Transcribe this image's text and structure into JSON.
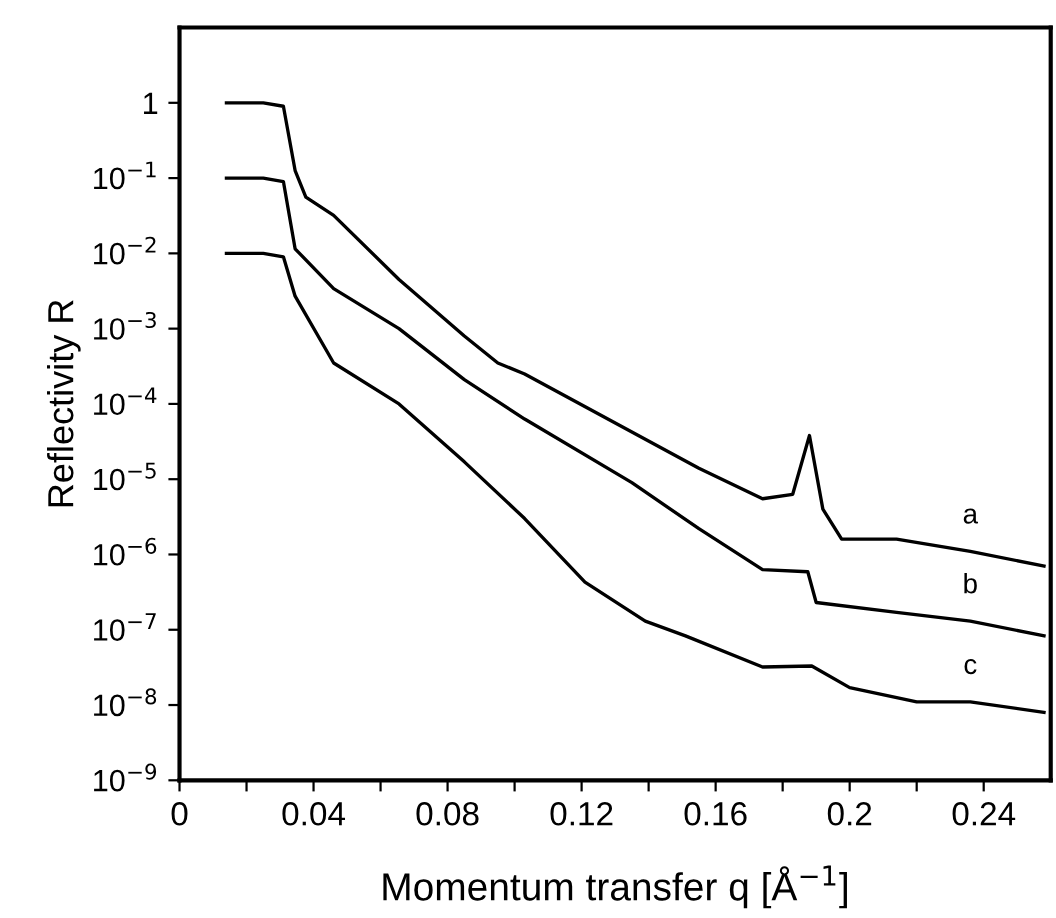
{
  "chart_data": {
    "type": "line",
    "xlabel": "Momentum transfer q [Å$^{−1}$]",
    "ylabel": "Reflectivity R",
    "log": "y",
    "grid": false,
    "legend": false,
    "marker": "none",
    "line_style": "solid",
    "xlim": [
      0,
      0.26
    ],
    "ylim": [
      1e-09,
      10
    ],
    "xticks": [
      0,
      {
        "value": 0.02,
        "label": null
      },
      0.04,
      {
        "value": 0.06,
        "label": null
      },
      0.08,
      {
        "value": 0.1,
        "label": null
      },
      0.12,
      {
        "value": 0.14,
        "label": null
      },
      0.16,
      {
        "value": 0.18,
        "label": null
      },
      0.2,
      {
        "value": 0.22,
        "label": null
      },
      0.24
    ],
    "yticks": [
      {
        "value": 1,
        "label": "1"
      },
      {
        "value": 0.1,
        "label": "10$^{−1}$"
      },
      {
        "value": 0.01,
        "label": "10$^{−2}$"
      },
      {
        "value": 0.001,
        "label": "10$^{−3}$"
      },
      {
        "value": 0.0001,
        "label": "10$^{−4}$"
      },
      {
        "value": 1e-05,
        "label": "10$^{−5}$"
      },
      {
        "value": 1e-06,
        "label": "10$^{−6}$"
      },
      {
        "value": 1e-07,
        "label": "10$^{−7}$"
      },
      {
        "value": 1e-08,
        "label": "10$^{−8}$"
      },
      {
        "value": 1e-09,
        "label": "10$^{−9}$"
      }
    ],
    "series": [
      {
        "name": "a",
        "color": "#000000",
        "x": [
          0.014,
          0.025,
          0.031,
          0.0345,
          0.0377,
          0.046,
          0.0655,
          0.085,
          0.095,
          0.103,
          0.155,
          0.174,
          0.183,
          0.188,
          0.192,
          0.1976,
          0.214,
          0.236,
          0.258
        ],
        "values": [
          1.0,
          1.0,
          0.9,
          0.126,
          0.056,
          0.032,
          0.0045,
          0.0008,
          0.00035,
          0.00025,
          1.4e-05,
          5.5e-06,
          6.3e-06,
          3.8e-05,
          4e-06,
          1.6e-06,
          1.6e-06,
          1.1e-06,
          7e-07
        ]
      },
      {
        "name": "b",
        "color": "#000000",
        "x": [
          0.014,
          0.025,
          0.031,
          0.0345,
          0.046,
          0.0655,
          0.085,
          0.103,
          0.135,
          0.155,
          0.174,
          0.1875,
          0.19,
          0.214,
          0.236,
          0.258
        ],
        "values": [
          0.1,
          0.1,
          0.09,
          0.0115,
          0.0034,
          0.001,
          0.00021,
          6.3e-05,
          9e-06,
          2.2e-06,
          6.3e-07,
          5.9e-07,
          2.3e-07,
          1.7e-07,
          1.3e-07,
          8.3e-08
        ]
      },
      {
        "name": "c",
        "color": "#000000",
        "x": [
          0.014,
          0.025,
          0.031,
          0.0345,
          0.046,
          0.0655,
          0.085,
          0.103,
          0.121,
          0.139,
          0.151,
          0.174,
          0.1887,
          0.2,
          0.22,
          0.236,
          0.258
        ],
        "values": [
          0.01,
          0.01,
          0.009,
          0.0027,
          0.00035,
          0.0001,
          1.7e-05,
          3e-06,
          4.3e-07,
          1.3e-07,
          8.3e-08,
          3.2e-08,
          3.3e-08,
          1.7e-08,
          1.1e-08,
          1.1e-08,
          8e-09
        ]
      }
    ]
  }
}
